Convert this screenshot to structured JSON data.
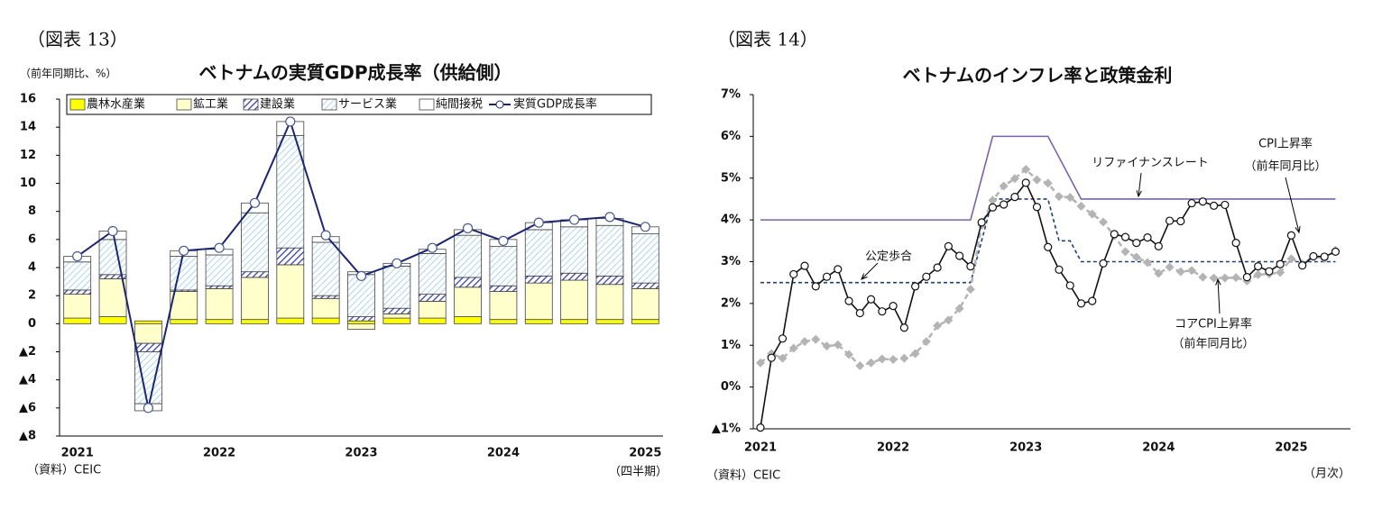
{
  "chart_data": [
    {
      "type": "bar",
      "stacked": true,
      "header": "（図表 13）",
      "title": "ベトナムの実質GDP成長率（供給側）",
      "ylabel": "（前年同期比、%）",
      "source": "（資料）CEIC",
      "xlabel": "（四半期）",
      "categories": [
        "2021",
        null,
        null,
        null,
        "2022",
        null,
        null,
        null,
        "2023",
        null,
        null,
        null,
        "2024",
        null,
        null,
        null,
        "2025"
      ],
      "ylim": [
        -8,
        16
      ],
      "yticks": [
        {
          "value": -8,
          "label": "▲8"
        },
        {
          "value": -6,
          "label": "▲6"
        },
        {
          "value": -4,
          "label": "▲4"
        },
        {
          "value": -2,
          "label": "▲2"
        },
        0,
        2,
        4,
        6,
        8,
        10,
        12,
        14,
        16
      ],
      "series": [
        {
          "name": "農林水産業",
          "color": "#ffff00",
          "values": [
            0.4,
            0.5,
            0.2,
            0.3,
            0.3,
            0.3,
            0.4,
            0.4,
            0.2,
            0.4,
            0.4,
            0.5,
            0.3,
            0.3,
            0.3,
            0.3,
            0.3
          ]
        },
        {
          "name": "鉱工業",
          "color": "#ffffcc",
          "values": [
            1.7,
            2.7,
            -1.4,
            2.0,
            2.2,
            3.0,
            3.8,
            1.4,
            -0.4,
            0.3,
            1.2,
            2.1,
            2.0,
            2.6,
            2.8,
            2.5,
            2.2
          ]
        },
        {
          "name": "建設業",
          "color": "#3a3fa8",
          "hatch": true,
          "values": [
            0.3,
            0.3,
            -0.6,
            0.1,
            0.2,
            0.4,
            1.2,
            0.2,
            0.3,
            0.4,
            0.5,
            0.7,
            0.4,
            0.5,
            0.5,
            0.6,
            0.4
          ]
        },
        {
          "name": "サービス業",
          "color": "#8ec3e6",
          "hatch": true,
          "values": [
            2.0,
            2.5,
            -3.7,
            2.4,
            2.2,
            4.2,
            8.0,
            3.8,
            3.0,
            3.0,
            2.9,
            3.0,
            2.8,
            3.3,
            3.3,
            3.6,
            3.5
          ]
        },
        {
          "name": "純間接税",
          "color": "#ffffff",
          "values": [
            0.4,
            0.6,
            -0.5,
            0.4,
            0.4,
            0.7,
            1.0,
            0.4,
            0.2,
            0.2,
            0.3,
            0.4,
            0.5,
            0.5,
            0.5,
            0.5,
            0.5
          ]
        },
        {
          "name": "実質GDP成長率",
          "type": "line",
          "color": "#1c2670",
          "values": [
            4.8,
            6.6,
            -6.0,
            5.2,
            5.4,
            8.6,
            14.4,
            6.3,
            3.4,
            4.3,
            5.4,
            6.8,
            5.9,
            7.2,
            7.4,
            7.6,
            6.9
          ]
        }
      ]
    },
    {
      "type": "line",
      "header": "（図表 14）",
      "title": "ベトナムのインフレ率と政策金利",
      "source": "（資料）CEIC",
      "xlabel": "（月次）",
      "categories": [
        "2021",
        null,
        null,
        null,
        null,
        null,
        null,
        null,
        null,
        null,
        null,
        null,
        "2022",
        null,
        null,
        null,
        null,
        null,
        null,
        null,
        null,
        null,
        null,
        null,
        "2023",
        null,
        null,
        null,
        null,
        null,
        null,
        null,
        null,
        null,
        null,
        null,
        "2024",
        null,
        null,
        null,
        null,
        null,
        null,
        null,
        null,
        null,
        null,
        null,
        "2025",
        null,
        null,
        null,
        null
      ],
      "ylim": [
        -1,
        7
      ],
      "yticks": [
        {
          "value": -1,
          "label": "▲1%"
        },
        {
          "value": 0,
          "label": "0%"
        },
        {
          "value": 1,
          "label": "1%"
        },
        {
          "value": 2,
          "label": "2%"
        },
        {
          "value": 3,
          "label": "3%"
        },
        {
          "value": 4,
          "label": "4%"
        },
        {
          "value": 5,
          "label": "5%"
        },
        {
          "value": 6,
          "label": "6%"
        },
        {
          "value": 7,
          "label": "7%"
        }
      ],
      "annotations": [
        "リファイナンスレート",
        "CPI上昇率",
        "（前年同月比）",
        "公定歩合",
        "コアCPI上昇率",
        "（前年同月比）"
      ],
      "series": [
        {
          "color": "#7b62a8",
          "style": "solid",
          "values": [
            4,
            4,
            4,
            4,
            4,
            4,
            4,
            4,
            4,
            4,
            4,
            4,
            4,
            4,
            4,
            4,
            4,
            4,
            4,
            4,
            5,
            6,
            6,
            6,
            6,
            6,
            6,
            5.5,
            5,
            4.5,
            4.5,
            4.5,
            4.5,
            4.5,
            4.5,
            4.5,
            4.5,
            4.5,
            4.5,
            4.5,
            4.5,
            4.5,
            4.5,
            4.5,
            4.5,
            4.5,
            4.5,
            4.5,
            4.5,
            4.5,
            4.5,
            4.5,
            4.5
          ]
        },
        {
          "color": "#1f3f7a",
          "style": "dashed",
          "values": [
            2.5,
            2.5,
            2.5,
            2.5,
            2.5,
            2.5,
            2.5,
            2.5,
            2.5,
            2.5,
            2.5,
            2.5,
            2.5,
            2.5,
            2.5,
            2.5,
            2.5,
            2.5,
            2.5,
            2.5,
            3.5,
            4.5,
            4.5,
            4.5,
            4.5,
            4.5,
            4.5,
            3.5,
            3.5,
            3,
            3,
            3,
            3,
            3,
            3,
            3,
            3,
            3,
            3,
            3,
            3,
            3,
            3,
            3,
            3,
            3,
            3,
            3,
            3,
            3,
            3,
            3,
            3
          ]
        },
        {
          "color": "#b4b4b4",
          "style": "dashed",
          "marker": "diamond",
          "values": [
            0.58,
            0.8,
            0.69,
            0.93,
            1.09,
            1.14,
            0.98,
            1.01,
            0.78,
            0.51,
            0.58,
            0.67,
            0.66,
            0.69,
            0.8,
            1.09,
            1.47,
            1.6,
            1.88,
            2.34,
            3.87,
            4.47,
            4.81,
            4.99,
            5.21,
            4.96,
            4.88,
            4.56,
            4.54,
            4.33,
            4.14,
            3.95,
            3.62,
            3.24,
            3.11,
            2.98,
            2.72,
            2.87,
            2.76,
            2.79,
            2.63,
            2.61,
            2.61,
            2.62,
            2.54,
            2.69,
            2.71,
            2.74,
            3.07,
            2.95,
            3.13,
            3.07,
            3.27
          ]
        },
        {
          "color": "#111111",
          "style": "solid",
          "marker": "circle",
          "values": [
            -0.97,
            0.7,
            1.16,
            2.7,
            2.9,
            2.41,
            2.64,
            2.82,
            2.06,
            1.77,
            2.1,
            1.81,
            1.94,
            1.42,
            2.41,
            2.64,
            2.86,
            3.37,
            3.14,
            2.89,
            3.94,
            4.3,
            4.37,
            4.55,
            4.89,
            4.31,
            3.35,
            2.81,
            2.43,
            2.0,
            2.06,
            2.96,
            3.66,
            3.59,
            3.45,
            3.58,
            3.37,
            3.98,
            3.97,
            4.4,
            4.44,
            4.34,
            4.36,
            3.45,
            2.63,
            2.89,
            2.77,
            2.94,
            3.63,
            2.91,
            3.13,
            3.12,
            3.24
          ]
        }
      ]
    }
  ]
}
